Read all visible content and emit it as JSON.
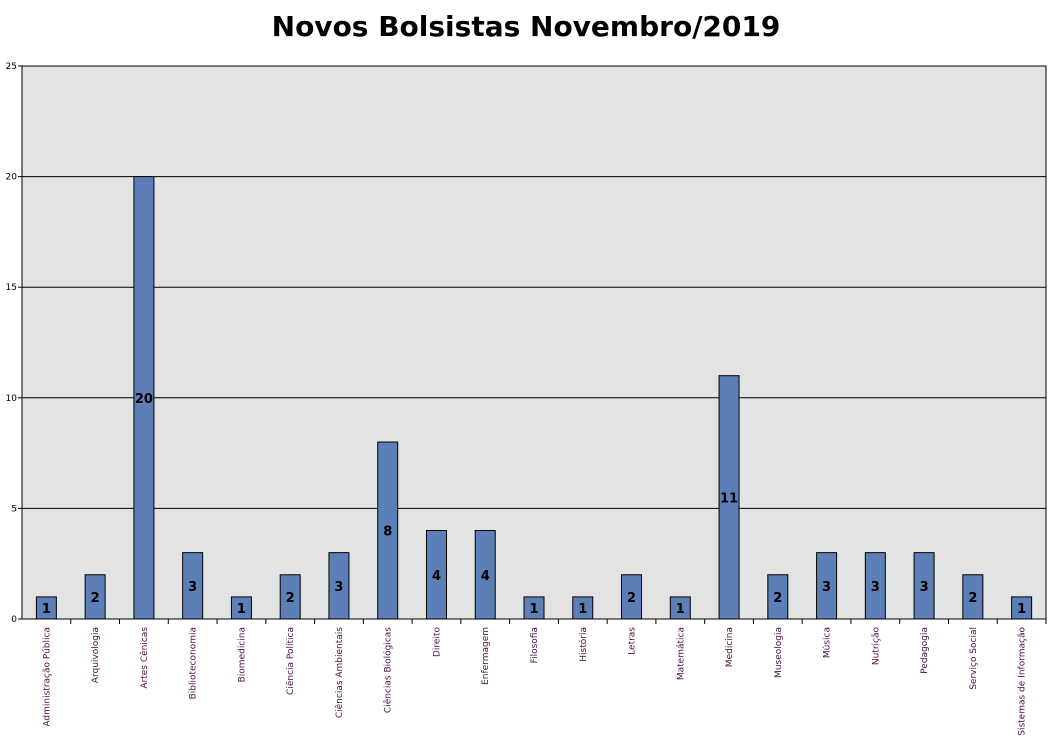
{
  "chart_data": {
    "type": "bar",
    "title": "Novos Bolsistas Novembro/2019",
    "xlabel": "",
    "ylabel": "",
    "ylim": [
      0,
      25
    ],
    "yticks": [
      0,
      5,
      10,
      15,
      20,
      25
    ],
    "grid": true,
    "legend": "none",
    "colors": {
      "bar": "#5b7fb6",
      "plot_background": "#e3e3e3",
      "category_label": "#4a1040"
    },
    "categories": [
      "Administração Pública",
      "Arquivologia",
      "Artes Cênicas",
      "Biblioteconomia",
      "Biomedicina",
      "Ciência Política",
      "Ciências Ambientais",
      "Ciências Biológicas",
      "Direito",
      "Enfermagem",
      "Filosofia",
      "História",
      "Letras",
      "Matemática",
      "Medicina",
      "Museologia",
      "Música",
      "Nutrição",
      "Pedagogia",
      "Serviço Social",
      "Sistemas de Informação"
    ],
    "values": [
      1,
      2,
      20,
      3,
      1,
      2,
      3,
      8,
      4,
      4,
      1,
      1,
      2,
      1,
      11,
      2,
      3,
      3,
      3,
      2,
      1
    ]
  }
}
